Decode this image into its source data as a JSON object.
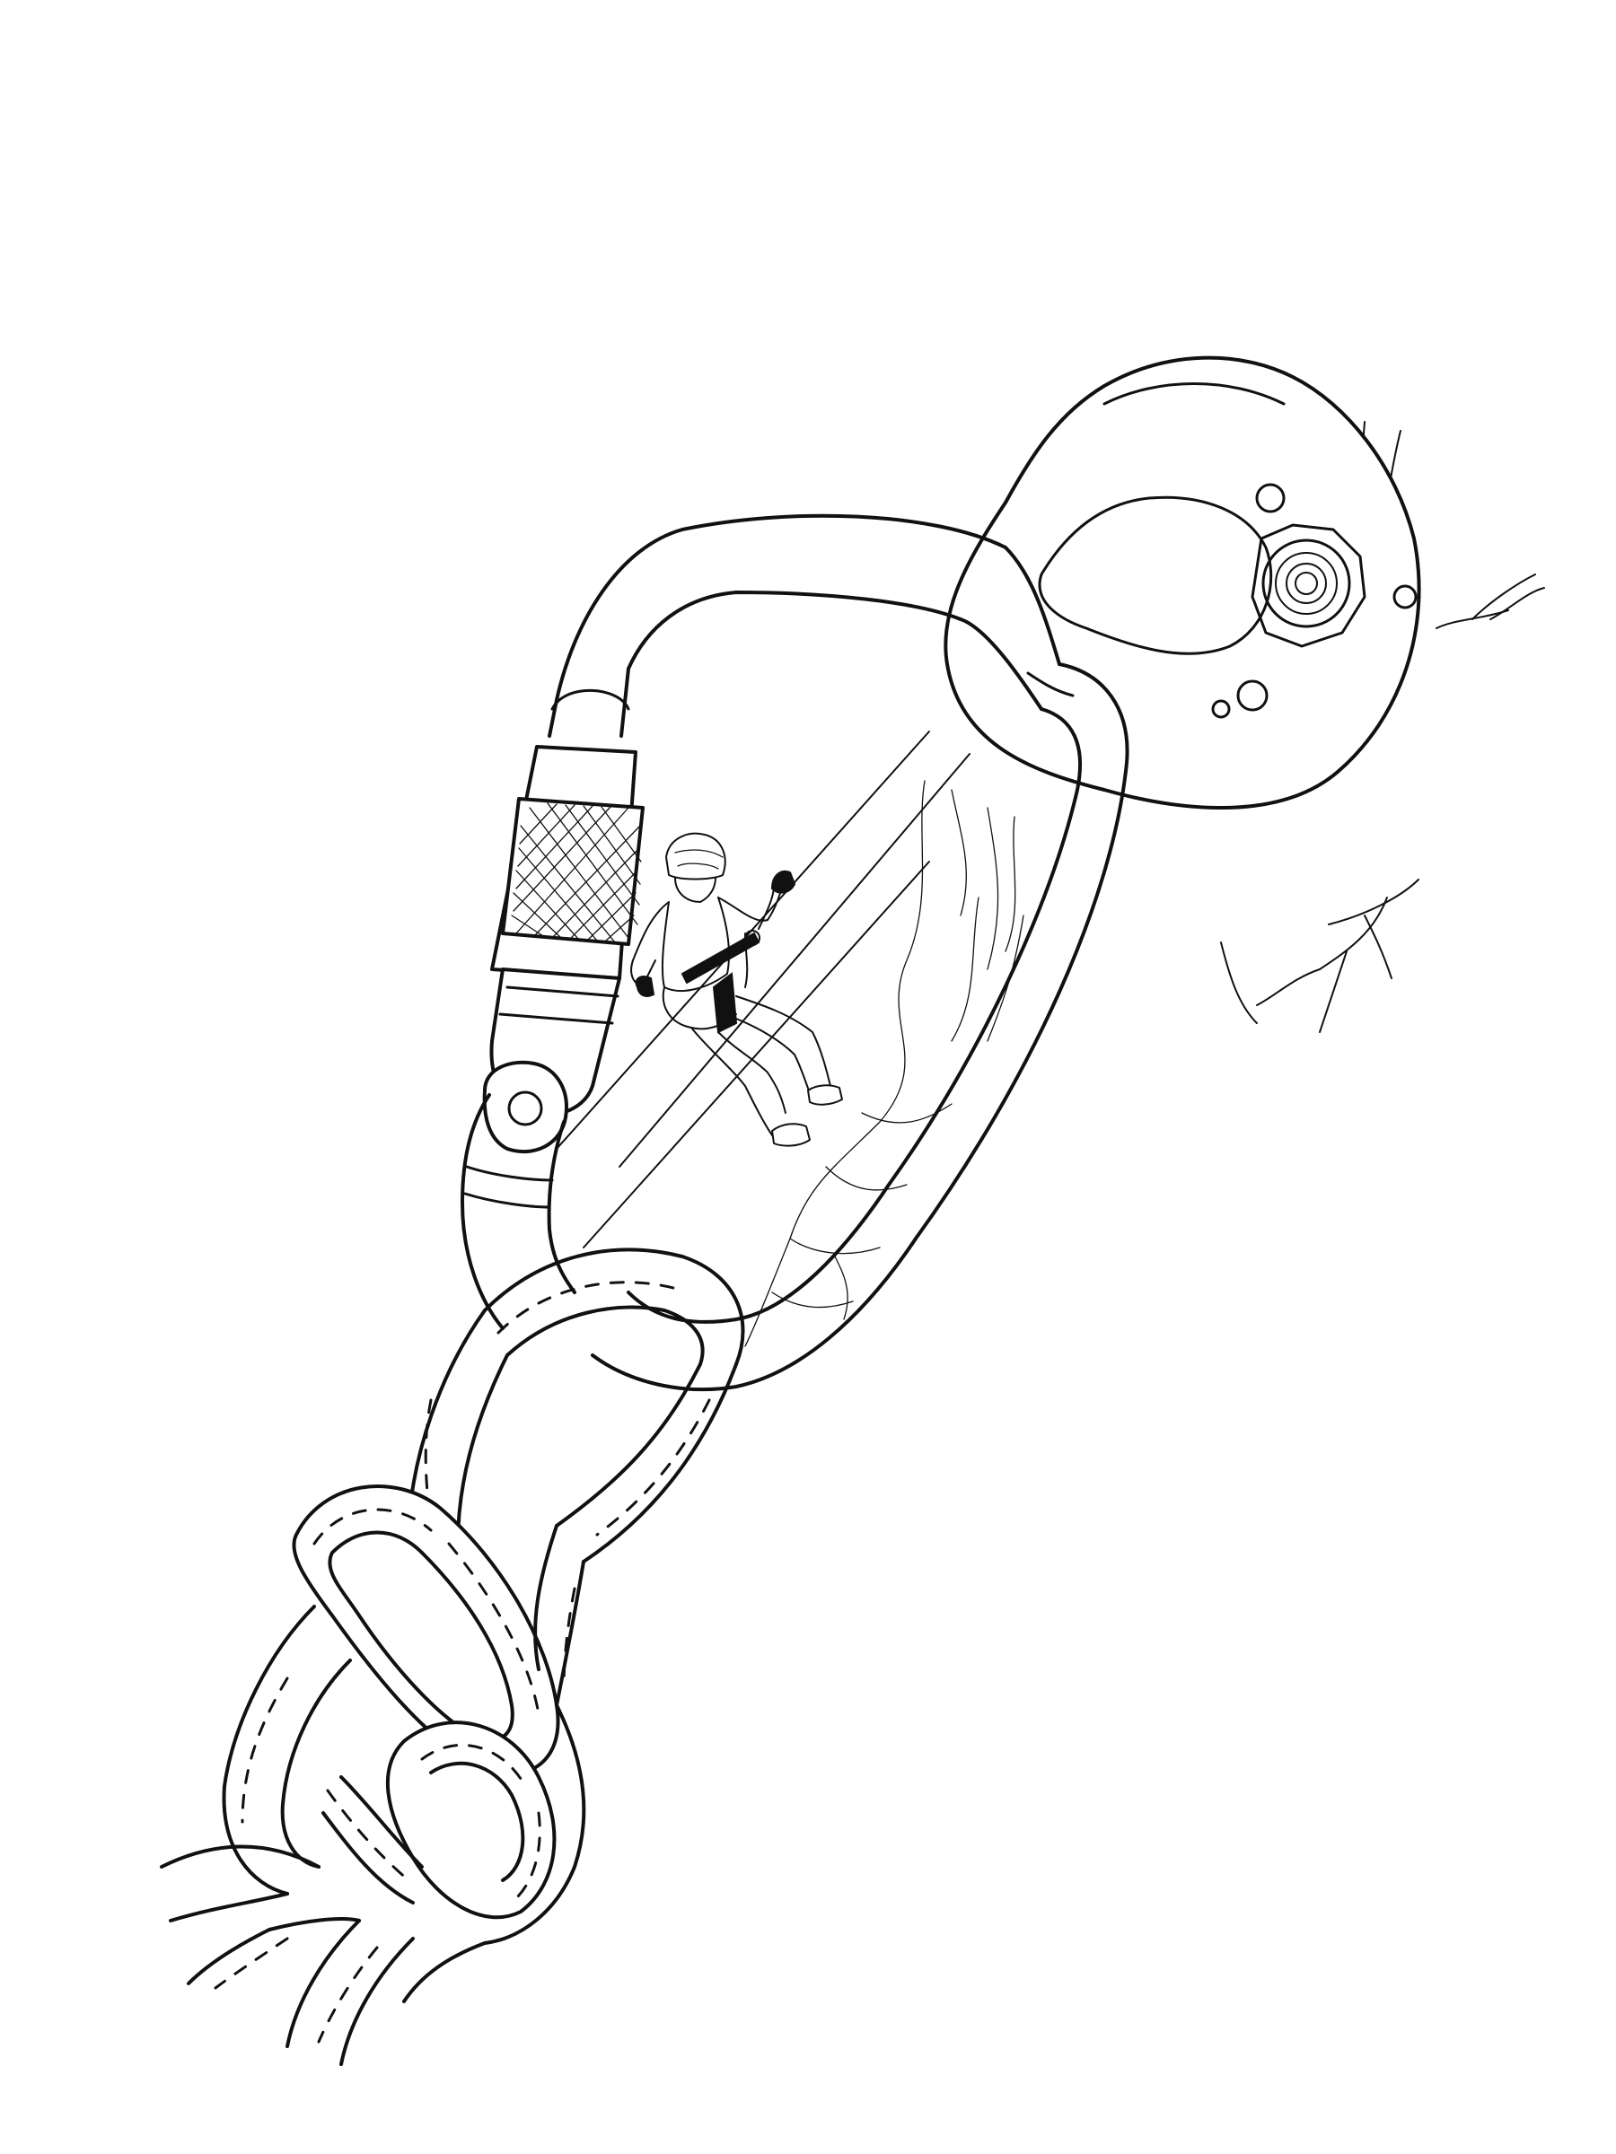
{
  "illustration": {
    "style": "black-and-white line art",
    "background_color": "#ffffff",
    "ink_color": "#111111",
    "elements": [
      "rock-crack",
      "bolt-hanger",
      "screw-gate-carabiner",
      "rappelling-climber",
      "rope-strands",
      "figure-eight-knot"
    ]
  }
}
